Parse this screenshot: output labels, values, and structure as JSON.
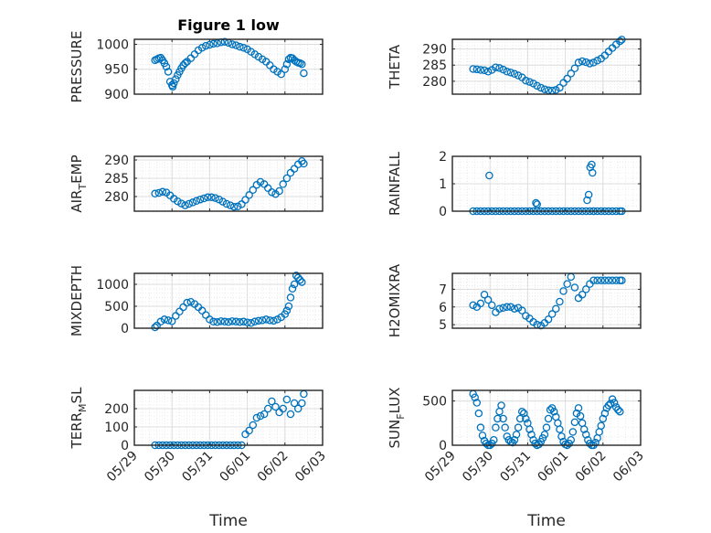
{
  "figure_title": "Figure 1 low",
  "x_ticks": [
    "05/29",
    "05/30",
    "05/31",
    "06/01",
    "06/02",
    "06/03"
  ],
  "colors": {
    "marker": "#0072BD",
    "grid": "#dcdcdc",
    "axis": "#262626"
  },
  "chart_data": [
    {
      "type": "scatter",
      "title": "Figure 1 low",
      "ylabel": "PRESSURE",
      "xlabel": "",
      "xlim": [
        0,
        5
      ],
      "ylim": [
        900,
        1010
      ],
      "yticks": [
        900,
        950,
        1000
      ],
      "grid": true,
      "x": [
        0.55,
        0.6,
        0.65,
        0.7,
        0.75,
        0.8,
        0.85,
        0.9,
        0.95,
        1.0,
        1.02,
        1.05,
        1.1,
        1.15,
        1.2,
        1.25,
        1.3,
        1.35,
        1.4,
        1.5,
        1.6,
        1.7,
        1.8,
        1.9,
        2.0,
        2.1,
        2.2,
        2.3,
        2.4,
        2.5,
        2.6,
        2.7,
        2.8,
        2.9,
        3.0,
        3.1,
        3.2,
        3.3,
        3.4,
        3.5,
        3.6,
        3.7,
        3.8,
        3.9,
        4.0,
        4.05,
        4.1,
        4.15,
        4.2,
        4.25,
        4.3,
        4.35,
        4.4,
        4.45,
        4.5
      ],
      "y": [
        968,
        970,
        972,
        973,
        968,
        962,
        955,
        945,
        925,
        918,
        915,
        922,
        930,
        938,
        945,
        952,
        958,
        962,
        965,
        972,
        980,
        988,
        993,
        997,
        999,
        1001,
        1002,
        1004,
        1005,
        1003,
        1000,
        998,
        995,
        993,
        990,
        985,
        980,
        975,
        970,
        965,
        958,
        950,
        945,
        940,
        950,
        960,
        970,
        973,
        972,
        968,
        965,
        963,
        962,
        960,
        942
      ]
    },
    {
      "type": "scatter",
      "title": "",
      "ylabel": "THETA",
      "xlabel": "",
      "xlim": [
        0,
        5
      ],
      "ylim": [
        276,
        293
      ],
      "yticks": [
        280,
        285,
        290
      ],
      "grid": true,
      "x": [
        0.55,
        0.65,
        0.75,
        0.85,
        0.95,
        1.05,
        1.15,
        1.25,
        1.35,
        1.45,
        1.55,
        1.65,
        1.75,
        1.85,
        1.95,
        2.05,
        2.15,
        2.25,
        2.35,
        2.45,
        2.55,
        2.65,
        2.75,
        2.85,
        2.95,
        3.05,
        3.15,
        3.25,
        3.35,
        3.45,
        3.55,
        3.65,
        3.75,
        3.85,
        3.95,
        4.05,
        4.15,
        4.25,
        4.35,
        4.45,
        4.5
      ],
      "y": [
        283.8,
        283.7,
        283.5,
        283.4,
        283.0,
        283.5,
        284.3,
        284.1,
        283.6,
        283.0,
        282.7,
        282.3,
        281.8,
        281.2,
        280.2,
        279.8,
        279.3,
        278.6,
        278.0,
        277.5,
        277.2,
        277.1,
        277.3,
        278.0,
        279.5,
        280.8,
        282.4,
        284.0,
        285.8,
        286.2,
        285.9,
        285.5,
        285.8,
        286.4,
        287.0,
        288.0,
        289.2,
        290.3,
        291.4,
        292.4,
        292.9
      ]
    },
    {
      "type": "scatter",
      "title": "",
      "ylabel": "AIR_TEMP",
      "xlabel": "",
      "xlim": [
        0,
        5
      ],
      "ylim": [
        276,
        291
      ],
      "yticks": [
        280,
        285,
        290
      ],
      "grid": true,
      "x": [
        0.55,
        0.65,
        0.75,
        0.85,
        0.95,
        1.05,
        1.15,
        1.25,
        1.35,
        1.45,
        1.55,
        1.65,
        1.75,
        1.85,
        1.95,
        2.05,
        2.15,
        2.25,
        2.35,
        2.45,
        2.55,
        2.65,
        2.75,
        2.85,
        2.95,
        3.05,
        3.15,
        3.25,
        3.35,
        3.45,
        3.55,
        3.65,
        3.75,
        3.85,
        3.95,
        4.05,
        4.15,
        4.25,
        4.35,
        4.45,
        4.5
      ],
      "y": [
        280.8,
        281.0,
        281.3,
        281.1,
        280.3,
        279.4,
        278.7,
        278.1,
        277.6,
        278.0,
        278.4,
        278.8,
        279.2,
        279.5,
        279.8,
        279.8,
        279.6,
        279.2,
        278.6,
        278.0,
        277.6,
        277.2,
        277.3,
        277.9,
        279.1,
        280.4,
        281.8,
        283.2,
        284.0,
        283.4,
        282.3,
        281.2,
        280.7,
        281.5,
        283.4,
        285.0,
        286.5,
        287.6,
        288.8,
        289.7,
        289.0
      ]
    },
    {
      "type": "scatter",
      "title": "",
      "ylabel": "RAINFALL",
      "xlabel": "",
      "xlim": [
        0,
        5
      ],
      "ylim": [
        0,
        2
      ],
      "yticks": [
        0,
        1,
        2
      ],
      "grid": true,
      "x": [
        0.55,
        0.65,
        0.75,
        0.85,
        0.95,
        1.05,
        1.15,
        1.25,
        1.35,
        1.45,
        1.55,
        1.65,
        1.75,
        1.85,
        1.95,
        2.05,
        2.15,
        2.25,
        2.35,
        2.45,
        2.55,
        2.65,
        2.75,
        2.85,
        2.95,
        3.05,
        3.15,
        3.25,
        3.35,
        3.45,
        3.55,
        3.65,
        3.75,
        3.85,
        3.95,
        4.05,
        4.15,
        4.25,
        4.35,
        4.45,
        4.5,
        0.98,
        2.22,
        2.25,
        3.58,
        3.62,
        3.66,
        3.7,
        3.72,
        3.75
      ],
      "y": [
        0,
        0,
        0,
        0,
        0,
        0,
        0,
        0,
        0,
        0,
        0,
        0,
        0,
        0,
        0,
        0,
        0,
        0,
        0,
        0,
        0,
        0,
        0,
        0,
        0,
        0,
        0,
        0,
        0,
        0,
        0,
        0,
        0,
        0,
        0,
        0,
        0,
        0,
        0,
        0,
        0,
        1.3,
        0.3,
        0.25,
        0.4,
        0.6,
        1.6,
        1.7,
        1.4,
        0.0
      ]
    },
    {
      "type": "scatter",
      "title": "",
      "ylabel": "MIXDEPTH",
      "xlabel": "",
      "xlim": [
        0,
        5
      ],
      "ylim": [
        0,
        1250
      ],
      "yticks": [
        0,
        500,
        1000
      ],
      "grid": true,
      "x": [
        0.55,
        0.6,
        0.7,
        0.8,
        0.9,
        1.0,
        1.1,
        1.2,
        1.3,
        1.4,
        1.5,
        1.6,
        1.7,
        1.8,
        1.9,
        2.0,
        2.1,
        2.2,
        2.3,
        2.4,
        2.5,
        2.6,
        2.7,
        2.8,
        2.9,
        3.0,
        3.1,
        3.2,
        3.3,
        3.4,
        3.5,
        3.6,
        3.7,
        3.8,
        3.9,
        4.0,
        4.05,
        4.1,
        4.15,
        4.2,
        4.25,
        4.3,
        4.35,
        4.4,
        4.45
      ],
      "y": [
        20,
        60,
        150,
        200,
        180,
        160,
        280,
        380,
        480,
        580,
        600,
        550,
        480,
        400,
        300,
        200,
        150,
        140,
        160,
        150,
        140,
        160,
        150,
        140,
        150,
        130,
        120,
        150,
        170,
        180,
        200,
        180,
        170,
        200,
        250,
        320,
        400,
        500,
        700,
        900,
        1000,
        1200,
        1150,
        1100,
        1050
      ]
    },
    {
      "type": "scatter",
      "title": "",
      "ylabel": "H2OMIXRA",
      "xlabel": "",
      "xlim": [
        0,
        5
      ],
      "ylim": [
        4.8,
        7.9
      ],
      "yticks": [
        5,
        6,
        7
      ],
      "grid": true,
      "x": [
        0.55,
        0.65,
        0.75,
        0.85,
        0.95,
        1.05,
        1.15,
        1.25,
        1.35,
        1.45,
        1.55,
        1.65,
        1.75,
        1.85,
        1.95,
        2.05,
        2.15,
        2.25,
        2.35,
        2.45,
        2.55,
        2.65,
        2.75,
        2.85,
        2.95,
        3.05,
        3.15,
        3.25,
        3.35,
        3.45,
        3.55,
        3.65,
        3.75,
        3.85,
        3.95,
        4.05,
        4.15,
        4.25,
        4.35,
        4.45,
        4.5
      ],
      "y": [
        6.1,
        6.0,
        6.2,
        6.7,
        6.4,
        6.1,
        5.7,
        5.9,
        5.95,
        6.0,
        6.0,
        5.9,
        5.95,
        5.8,
        5.5,
        5.35,
        5.15,
        5.0,
        4.95,
        5.1,
        5.3,
        5.6,
        5.9,
        6.3,
        6.9,
        7.3,
        7.7,
        7.1,
        6.5,
        6.7,
        7.0,
        7.3,
        7.5,
        7.5,
        7.5,
        7.5,
        7.5,
        7.5,
        7.5,
        7.5,
        7.5
      ]
    },
    {
      "type": "scatter",
      "title": "",
      "ylabel": "TERR_MSL",
      "xlabel": "Time",
      "xlim": [
        0,
        5
      ],
      "ylim": [
        0,
        300
      ],
      "yticks": [
        0,
        100,
        200
      ],
      "grid": true,
      "x": [
        0.55,
        0.65,
        0.75,
        0.85,
        0.95,
        1.05,
        1.15,
        1.25,
        1.35,
        1.45,
        1.55,
        1.65,
        1.75,
        1.85,
        1.95,
        2.05,
        2.15,
        2.25,
        2.35,
        2.45,
        2.55,
        2.65,
        2.75,
        2.85,
        2.95,
        3.05,
        3.15,
        3.25,
        3.35,
        3.45,
        3.55,
        3.65,
        3.75,
        3.85,
        3.95,
        4.05,
        4.15,
        4.25,
        4.35,
        4.45,
        4.5
      ],
      "y": [
        0,
        0,
        0,
        0,
        0,
        0,
        0,
        0,
        0,
        0,
        0,
        0,
        0,
        0,
        0,
        0,
        0,
        0,
        0,
        0,
        0,
        0,
        0,
        0,
        60,
        80,
        110,
        150,
        160,
        170,
        200,
        240,
        210,
        180,
        200,
        250,
        170,
        230,
        200,
        230,
        280
      ]
    },
    {
      "type": "scatter",
      "title": "",
      "ylabel": "SUN_FLUX",
      "xlabel": "Time",
      "xlim": [
        0,
        5
      ],
      "ylim": [
        0,
        620
      ],
      "yticks": [
        0,
        500
      ],
      "grid": true,
      "x": [
        0.55,
        0.6,
        0.65,
        0.7,
        0.75,
        0.8,
        0.85,
        0.9,
        0.95,
        1.0,
        1.05,
        1.1,
        1.15,
        1.2,
        1.25,
        1.3,
        1.35,
        1.4,
        1.45,
        1.5,
        1.55,
        1.6,
        1.65,
        1.7,
        1.75,
        1.8,
        1.85,
        1.9,
        1.95,
        2.0,
        2.05,
        2.1,
        2.15,
        2.2,
        2.25,
        2.3,
        2.35,
        2.4,
        2.45,
        2.5,
        2.55,
        2.6,
        2.65,
        2.7,
        2.75,
        2.8,
        2.85,
        2.9,
        2.95,
        3.0,
        3.05,
        3.1,
        3.15,
        3.2,
        3.25,
        3.3,
        3.35,
        3.4,
        3.45,
        3.5,
        3.55,
        3.6,
        3.65,
        3.7,
        3.75,
        3.8,
        3.85,
        3.9,
        3.95,
        4.0,
        4.05,
        4.1,
        4.15,
        4.2,
        4.25,
        4.3,
        4.35,
        4.4,
        4.45
      ],
      "y": [
        580,
        540,
        480,
        360,
        200,
        110,
        50,
        20,
        0,
        0,
        20,
        60,
        200,
        300,
        380,
        450,
        300,
        200,
        100,
        60,
        40,
        30,
        60,
        120,
        200,
        300,
        380,
        360,
        300,
        250,
        180,
        120,
        60,
        20,
        0,
        10,
        40,
        80,
        120,
        200,
        300,
        400,
        420,
        380,
        320,
        250,
        180,
        100,
        40,
        10,
        0,
        20,
        60,
        150,
        260,
        360,
        420,
        330,
        250,
        180,
        120,
        60,
        20,
        0,
        0,
        30,
        80,
        150,
        220,
        300,
        360,
        420,
        450,
        470,
        520,
        480,
        430,
        400,
        380
      ]
    }
  ]
}
